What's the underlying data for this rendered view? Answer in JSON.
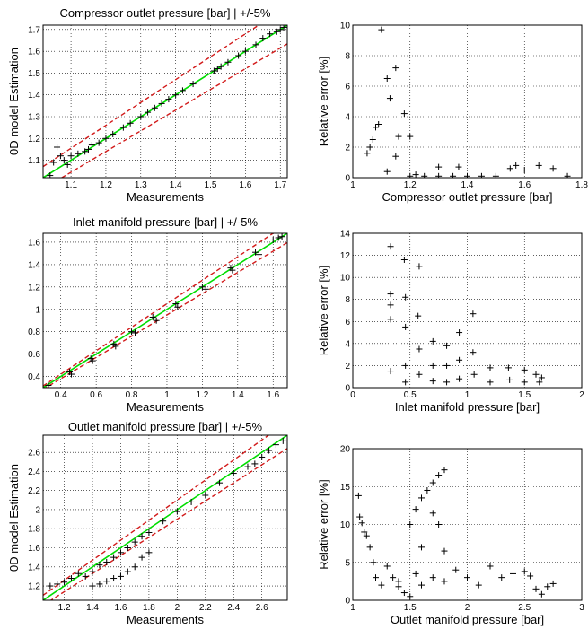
{
  "chart_data": [
    {
      "id": "p1",
      "type": "scatter",
      "title": "Compressor outlet pressure [bar] | +/-5%",
      "xlabel": "Measurements",
      "ylabel": "0D model Estimation",
      "xlim": [
        1.02,
        1.72
      ],
      "ylim": [
        1.02,
        1.72
      ],
      "xticks": [
        1.1,
        1.2,
        1.3,
        1.4,
        1.5,
        1.6,
        1.7
      ],
      "yticks": [
        1.1,
        1.2,
        1.3,
        1.4,
        1.5,
        1.6,
        1.7
      ],
      "grid": true,
      "band": 0.05,
      "points": [
        [
          1.04,
          1.03
        ],
        [
          1.05,
          1.09
        ],
        [
          1.06,
          1.16
        ],
        [
          1.07,
          1.12
        ],
        [
          1.08,
          1.1
        ],
        [
          1.09,
          1.08
        ],
        [
          1.1,
          1.12
        ],
        [
          1.12,
          1.13
        ],
        [
          1.14,
          1.14
        ],
        [
          1.15,
          1.15
        ],
        [
          1.16,
          1.17
        ],
        [
          1.18,
          1.18
        ],
        [
          1.2,
          1.2
        ],
        [
          1.22,
          1.22
        ],
        [
          1.25,
          1.25
        ],
        [
          1.27,
          1.27
        ],
        [
          1.3,
          1.3
        ],
        [
          1.32,
          1.32
        ],
        [
          1.34,
          1.34
        ],
        [
          1.36,
          1.36
        ],
        [
          1.38,
          1.38
        ],
        [
          1.4,
          1.4
        ],
        [
          1.42,
          1.42
        ],
        [
          1.45,
          1.45
        ],
        [
          1.51,
          1.51
        ],
        [
          1.52,
          1.52
        ],
        [
          1.53,
          1.53
        ],
        [
          1.55,
          1.55
        ],
        [
          1.58,
          1.58
        ],
        [
          1.6,
          1.6
        ],
        [
          1.63,
          1.63
        ],
        [
          1.65,
          1.66
        ],
        [
          1.67,
          1.68
        ],
        [
          1.69,
          1.69
        ],
        [
          1.7,
          1.7
        ],
        [
          1.71,
          1.71
        ]
      ]
    },
    {
      "id": "p2",
      "type": "scatter",
      "title": "",
      "xlabel": "Compressor outlet pressure [bar]",
      "ylabel": "Relative error [%]",
      "xlim": [
        1,
        1.8
      ],
      "ylim": [
        0,
        10
      ],
      "xticks": [
        1,
        1.2,
        1.4,
        1.6,
        1.8
      ],
      "yticks": [
        0,
        2,
        4,
        6,
        8,
        10
      ],
      "grid": true,
      "points": [
        [
          1.05,
          1.6
        ],
        [
          1.06,
          2.0
        ],
        [
          1.07,
          2.5
        ],
        [
          1.08,
          3.3
        ],
        [
          1.09,
          3.5
        ],
        [
          1.1,
          9.7
        ],
        [
          1.12,
          6.5
        ],
        [
          1.13,
          5.2
        ],
        [
          1.15,
          7.2
        ],
        [
          1.16,
          2.7
        ],
        [
          1.18,
          4.2
        ],
        [
          1.2,
          2.7
        ],
        [
          1.15,
          1.4
        ],
        [
          1.12,
          0.4
        ],
        [
          1.2,
          0.1
        ],
        [
          1.25,
          0.1
        ],
        [
          1.3,
          0.1
        ],
        [
          1.35,
          0.1
        ],
        [
          1.4,
          0.1
        ],
        [
          1.45,
          0.1
        ],
        [
          1.5,
          0.1
        ],
        [
          1.55,
          0.6
        ],
        [
          1.57,
          0.8
        ],
        [
          1.6,
          0.5
        ],
        [
          1.65,
          0.8
        ],
        [
          1.7,
          0.6
        ],
        [
          1.75,
          0.1
        ],
        [
          1.3,
          0.7
        ],
        [
          1.37,
          0.7
        ],
        [
          1.22,
          0.2
        ]
      ]
    },
    {
      "id": "p3",
      "type": "scatter",
      "title": "Inlet manifold pressure [bar] | +/-5%",
      "xlabel": "Measurements",
      "ylabel": "",
      "xlim": [
        0.3,
        1.68
      ],
      "ylim": [
        0.3,
        1.68
      ],
      "xticks": [
        0.4,
        0.6,
        0.8,
        1,
        1.2,
        1.4,
        1.6
      ],
      "yticks": [
        0.4,
        0.6,
        0.8,
        1,
        1.2,
        1.4,
        1.6
      ],
      "grid": true,
      "band": 0.05,
      "points": [
        [
          0.33,
          0.32
        ],
        [
          0.45,
          0.44
        ],
        [
          0.46,
          0.42
        ],
        [
          0.57,
          0.56
        ],
        [
          0.58,
          0.54
        ],
        [
          0.7,
          0.69
        ],
        [
          0.71,
          0.67
        ],
        [
          0.8,
          0.8
        ],
        [
          0.82,
          0.79
        ],
        [
          0.92,
          0.93
        ],
        [
          0.94,
          0.9
        ],
        [
          1.05,
          1.05
        ],
        [
          1.06,
          1.02
        ],
        [
          1.2,
          1.2
        ],
        [
          1.22,
          1.18
        ],
        [
          1.36,
          1.37
        ],
        [
          1.37,
          1.35
        ],
        [
          1.5,
          1.51
        ],
        [
          1.52,
          1.49
        ],
        [
          1.6,
          1.62
        ],
        [
          1.63,
          1.64
        ],
        [
          1.65,
          1.65
        ]
      ]
    },
    {
      "id": "p4",
      "type": "scatter",
      "title": "",
      "xlabel": "Inlet manifold pressure [bar]",
      "ylabel": "Relative error [%]",
      "xlim": [
        0,
        2
      ],
      "ylim": [
        0,
        14
      ],
      "xticks": [
        0,
        0.5,
        1,
        1.5,
        2
      ],
      "yticks": [
        0,
        2,
        4,
        6,
        8,
        10,
        12,
        14
      ],
      "grid": true,
      "points": [
        [
          0.33,
          12.8
        ],
        [
          0.33,
          8.5
        ],
        [
          0.33,
          7.5
        ],
        [
          0.33,
          6.2
        ],
        [
          0.33,
          1.5
        ],
        [
          0.45,
          11.6
        ],
        [
          0.46,
          8.2
        ],
        [
          0.46,
          5.5
        ],
        [
          0.46,
          2.0
        ],
        [
          0.46,
          0.5
        ],
        [
          0.58,
          11.0
        ],
        [
          0.57,
          6.5
        ],
        [
          0.58,
          3.5
        ],
        [
          0.58,
          1.2
        ],
        [
          0.7,
          4.2
        ],
        [
          0.7,
          2.0
        ],
        [
          0.7,
          0.6
        ],
        [
          0.82,
          3.8
        ],
        [
          0.82,
          2.0
        ],
        [
          0.82,
          0.5
        ],
        [
          0.93,
          5.0
        ],
        [
          0.93,
          2.5
        ],
        [
          0.93,
          0.8
        ],
        [
          1.05,
          6.7
        ],
        [
          1.05,
          3.2
        ],
        [
          1.06,
          1.2
        ],
        [
          1.2,
          1.8
        ],
        [
          1.2,
          0.5
        ],
        [
          1.36,
          1.8
        ],
        [
          1.37,
          0.7
        ],
        [
          1.5,
          1.6
        ],
        [
          1.5,
          0.5
        ],
        [
          1.6,
          1.2
        ],
        [
          1.63,
          0.5
        ],
        [
          1.65,
          0.9
        ]
      ]
    },
    {
      "id": "p5",
      "type": "scatter",
      "title": "Outlet manifold pressure [bar] | +/-5%",
      "xlabel": "Measurements",
      "ylabel": "0D model Estimation",
      "xlim": [
        1.05,
        2.78
      ],
      "ylim": [
        1.05,
        2.78
      ],
      "xticks": [
        1.2,
        1.4,
        1.6,
        1.8,
        2,
        2.2,
        2.4,
        2.6
      ],
      "yticks": [
        1.2,
        1.4,
        1.6,
        1.8,
        2,
        2.2,
        2.4,
        2.6
      ],
      "grid": true,
      "band": 0.05,
      "points": [
        [
          1.1,
          1.2
        ],
        [
          1.15,
          1.22
        ],
        [
          1.2,
          1.24
        ],
        [
          1.25,
          1.28
        ],
        [
          1.3,
          1.33
        ],
        [
          1.35,
          1.3
        ],
        [
          1.4,
          1.35
        ],
        [
          1.45,
          1.42
        ],
        [
          1.5,
          1.45
        ],
        [
          1.55,
          1.5
        ],
        [
          1.6,
          1.55
        ],
        [
          1.65,
          1.6
        ],
        [
          1.7,
          1.66
        ],
        [
          1.75,
          1.72
        ],
        [
          1.8,
          1.76
        ],
        [
          1.4,
          1.2
        ],
        [
          1.45,
          1.22
        ],
        [
          1.5,
          1.25
        ],
        [
          1.55,
          1.28
        ],
        [
          1.6,
          1.3
        ],
        [
          1.65,
          1.35
        ],
        [
          1.7,
          1.4
        ],
        [
          1.75,
          1.5
        ],
        [
          1.8,
          1.55
        ],
        [
          1.9,
          1.88
        ],
        [
          2.0,
          1.98
        ],
        [
          2.1,
          2.08
        ],
        [
          2.2,
          2.15
        ],
        [
          2.3,
          2.28
        ],
        [
          2.4,
          2.38
        ],
        [
          2.5,
          2.45
        ],
        [
          2.55,
          2.48
        ],
        [
          2.6,
          2.55
        ],
        [
          2.65,
          2.62
        ],
        [
          2.7,
          2.68
        ],
        [
          2.75,
          2.72
        ]
      ]
    },
    {
      "id": "p6",
      "type": "scatter",
      "title": "",
      "xlabel": "Outlet manifold pressure [bar]",
      "ylabel": "Relative error [%]",
      "xlim": [
        1,
        3
      ],
      "ylim": [
        0,
        20
      ],
      "xticks": [
        1,
        1.5,
        2,
        2.5,
        3
      ],
      "yticks": [
        0,
        5,
        10,
        15,
        20
      ],
      "grid": true,
      "points": [
        [
          1.05,
          13.8
        ],
        [
          1.06,
          11.0
        ],
        [
          1.08,
          10.2
        ],
        [
          1.1,
          9.0
        ],
        [
          1.12,
          8.5
        ],
        [
          1.15,
          7.0
        ],
        [
          1.18,
          5.0
        ],
        [
          1.2,
          3.0
        ],
        [
          1.25,
          2.0
        ],
        [
          1.3,
          4.5
        ],
        [
          1.35,
          3.0
        ],
        [
          1.4,
          2.5
        ],
        [
          1.45,
          1.0
        ],
        [
          1.5,
          10.0
        ],
        [
          1.55,
          12.0
        ],
        [
          1.6,
          13.5
        ],
        [
          1.65,
          14.5
        ],
        [
          1.7,
          15.5
        ],
        [
          1.75,
          16.5
        ],
        [
          1.8,
          17.2
        ],
        [
          1.7,
          11.5
        ],
        [
          1.75,
          10.0
        ],
        [
          1.8,
          6.5
        ],
        [
          1.6,
          7.0
        ],
        [
          1.55,
          3.5
        ],
        [
          1.6,
          2.0
        ],
        [
          1.7,
          3.0
        ],
        [
          1.8,
          2.5
        ],
        [
          1.9,
          4.0
        ],
        [
          2.0,
          3.0
        ],
        [
          2.1,
          2.0
        ],
        [
          2.2,
          4.5
        ],
        [
          2.3,
          3.0
        ],
        [
          2.4,
          3.5
        ],
        [
          2.5,
          3.8
        ],
        [
          2.55,
          3.2
        ],
        [
          2.6,
          1.5
        ],
        [
          2.65,
          0.8
        ],
        [
          2.7,
          1.8
        ],
        [
          2.75,
          2.2
        ],
        [
          1.5,
          0.5
        ],
        [
          1.4,
          1.8
        ]
      ]
    }
  ]
}
